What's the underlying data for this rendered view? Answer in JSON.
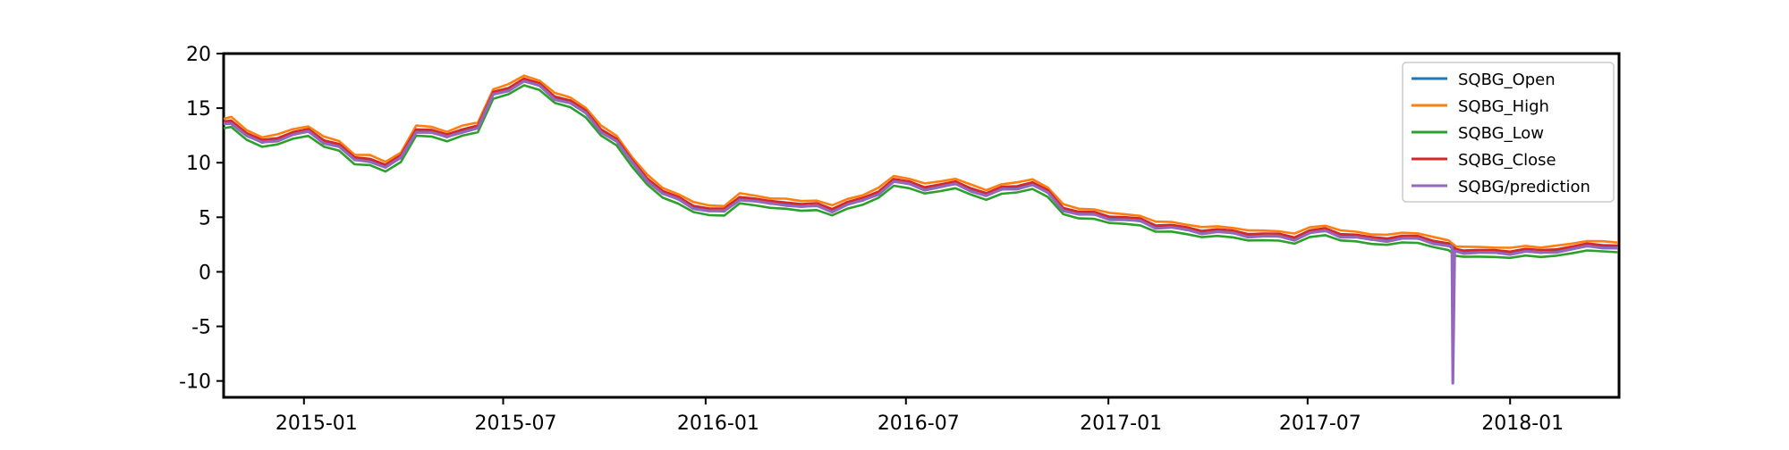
{
  "chart_data": {
    "type": "line",
    "title": "",
    "xlabel": "",
    "ylabel": "",
    "x_range": [
      "2014-10-20",
      "2018-04-10"
    ],
    "ylim": [
      -11.5,
      20
    ],
    "y_ticks": [
      20,
      15,
      10,
      5,
      0,
      -5,
      -10
    ],
    "y_tick_labels": [
      "20",
      "15",
      "10",
      "5",
      "0",
      "-5",
      "-10"
    ],
    "x_ticks": [
      "2015-01-01",
      "2015-07-01",
      "2016-01-01",
      "2016-07-01",
      "2017-01-01",
      "2017-07-01",
      "2018-01-01"
    ],
    "x_tick_labels": [
      "2015-01",
      "2015-07",
      "2016-01",
      "2016-07",
      "2017-01",
      "2017-07",
      "2018-01"
    ],
    "grid": false,
    "legend_position": "top-right",
    "colors": {
      "open": "#1f77b4",
      "high": "#ff7f0e",
      "low": "#2ca02c",
      "close": "#d62728",
      "prediction": "#9467bd"
    },
    "series": [
      {
        "name": "SQBG_Open",
        "color_key": "open",
        "offset": 0.0
      },
      {
        "name": "SQBG_High",
        "color_key": "high",
        "offset": 0.45
      },
      {
        "name": "SQBG_Low",
        "color_key": "low",
        "offset": -0.45
      },
      {
        "name": "SQBG_Close",
        "color_key": "close",
        "offset": 0.15
      },
      {
        "name": "SQBG/prediction",
        "color_key": "prediction",
        "offset": -0.1
      }
    ],
    "x": [
      "2014-10-20",
      "2014-10-27",
      "2014-11-10",
      "2014-11-24",
      "2014-12-08",
      "2014-12-22",
      "2015-01-05",
      "2015-01-19",
      "2015-02-02",
      "2015-02-16",
      "2015-03-02",
      "2015-03-16",
      "2015-03-30",
      "2015-04-13",
      "2015-04-27",
      "2015-05-11",
      "2015-05-25",
      "2015-06-08",
      "2015-06-22",
      "2015-07-06",
      "2015-07-20",
      "2015-08-03",
      "2015-08-17",
      "2015-08-31",
      "2015-09-14",
      "2015-09-28",
      "2015-10-12",
      "2015-10-26",
      "2015-11-09",
      "2015-11-23",
      "2015-12-07",
      "2015-12-21",
      "2016-01-04",
      "2016-01-18",
      "2016-02-01",
      "2016-02-15",
      "2016-02-29",
      "2016-03-14",
      "2016-03-28",
      "2016-04-11",
      "2016-04-25",
      "2016-05-09",
      "2016-05-23",
      "2016-06-06",
      "2016-06-20",
      "2016-07-04",
      "2016-07-18",
      "2016-08-01",
      "2016-08-15",
      "2016-08-29",
      "2016-09-12",
      "2016-09-26",
      "2016-10-10",
      "2016-10-24",
      "2016-11-07",
      "2016-11-21",
      "2016-12-05",
      "2016-12-19",
      "2017-01-02",
      "2017-01-16",
      "2017-01-30",
      "2017-02-13",
      "2017-02-27",
      "2017-03-13",
      "2017-03-27",
      "2017-04-10",
      "2017-04-24",
      "2017-05-08",
      "2017-05-22",
      "2017-06-05",
      "2017-06-19",
      "2017-07-03",
      "2017-07-17",
      "2017-07-31",
      "2017-08-14",
      "2017-08-28",
      "2017-09-11",
      "2017-09-25",
      "2017-10-09",
      "2017-10-23",
      "2017-11-06",
      "2017-11-13",
      "2017-11-20",
      "2017-12-04",
      "2017-12-18",
      "2018-01-01",
      "2018-01-15",
      "2018-01-29",
      "2018-02-12",
      "2018-02-26",
      "2018-03-12",
      "2018-03-26",
      "2018-04-09"
    ],
    "y_close": [
      13.5,
      13.8,
      12.5,
      11.8,
      12.2,
      12.6,
      12.8,
      12.0,
      11.5,
      10.2,
      10.3,
      9.6,
      10.4,
      13.0,
      12.8,
      12.3,
      13.0,
      13.2,
      16.2,
      16.8,
      17.5,
      17.0,
      16.0,
      15.5,
      14.5,
      13.0,
      12.0,
      10.0,
      8.5,
      7.2,
      6.6,
      6.0,
      5.6,
      5.5,
      6.8,
      6.5,
      6.2,
      6.3,
      6.0,
      6.0,
      5.7,
      6.2,
      6.5,
      7.3,
      8.3,
      8.0,
      7.7,
      7.8,
      8.0,
      7.6,
      7.0,
      7.5,
      7.8,
      8.0,
      7.2,
      5.8,
      5.3,
      5.2,
      5.0,
      4.8,
      4.6,
      4.2,
      4.1,
      3.8,
      3.7,
      3.7,
      3.5,
      3.4,
      3.3,
      3.2,
      3.1,
      3.6,
      3.7,
      3.4,
      3.2,
      2.9,
      3.0,
      3.1,
      3.0,
      2.8,
      2.4,
      1.8,
      1.9,
      1.8,
      1.7,
      1.8,
      1.9,
      1.7,
      2.0,
      2.1,
      2.3,
      2.4,
      2.2
    ],
    "y_prediction_extra": {
      "date": "2017-11-10",
      "value": -10.2
    }
  }
}
